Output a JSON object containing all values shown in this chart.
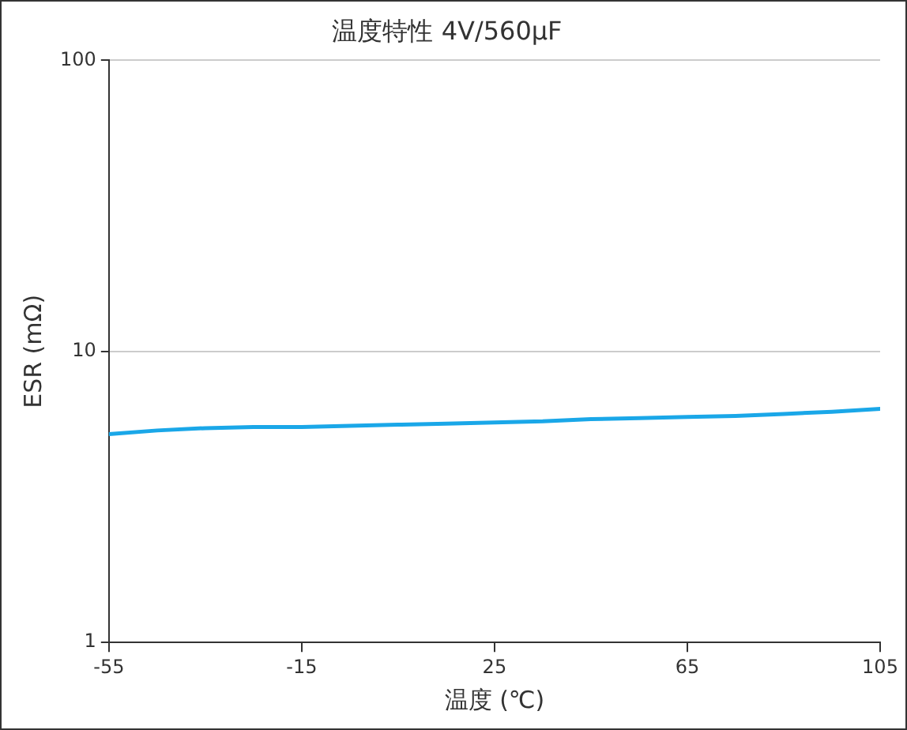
{
  "chart_data": {
    "type": "line",
    "title": "温度特性 4V/560μF",
    "xlabel": "温度 (℃)",
    "ylabel": "ESR (mΩ)",
    "x": [
      -55,
      -45,
      -35,
      -25,
      -15,
      -5,
      5,
      15,
      25,
      35,
      45,
      55,
      65,
      75,
      85,
      95,
      105
    ],
    "series": [
      {
        "color": "#1aa7e8",
        "values": [
          5.2,
          5.35,
          5.45,
          5.5,
          5.5,
          5.55,
          5.6,
          5.65,
          5.7,
          5.75,
          5.85,
          5.9,
          5.95,
          6.0,
          6.1,
          6.2,
          6.35
        ]
      }
    ],
    "xlim": [
      -55,
      105
    ],
    "xticks": [
      -55,
      -15,
      25,
      65,
      105
    ],
    "ylim": [
      1,
      100
    ],
    "yticks": [
      1,
      10,
      100
    ],
    "log": true,
    "grid": "y",
    "legend": false,
    "marker": "none",
    "line_style": "solid"
  }
}
